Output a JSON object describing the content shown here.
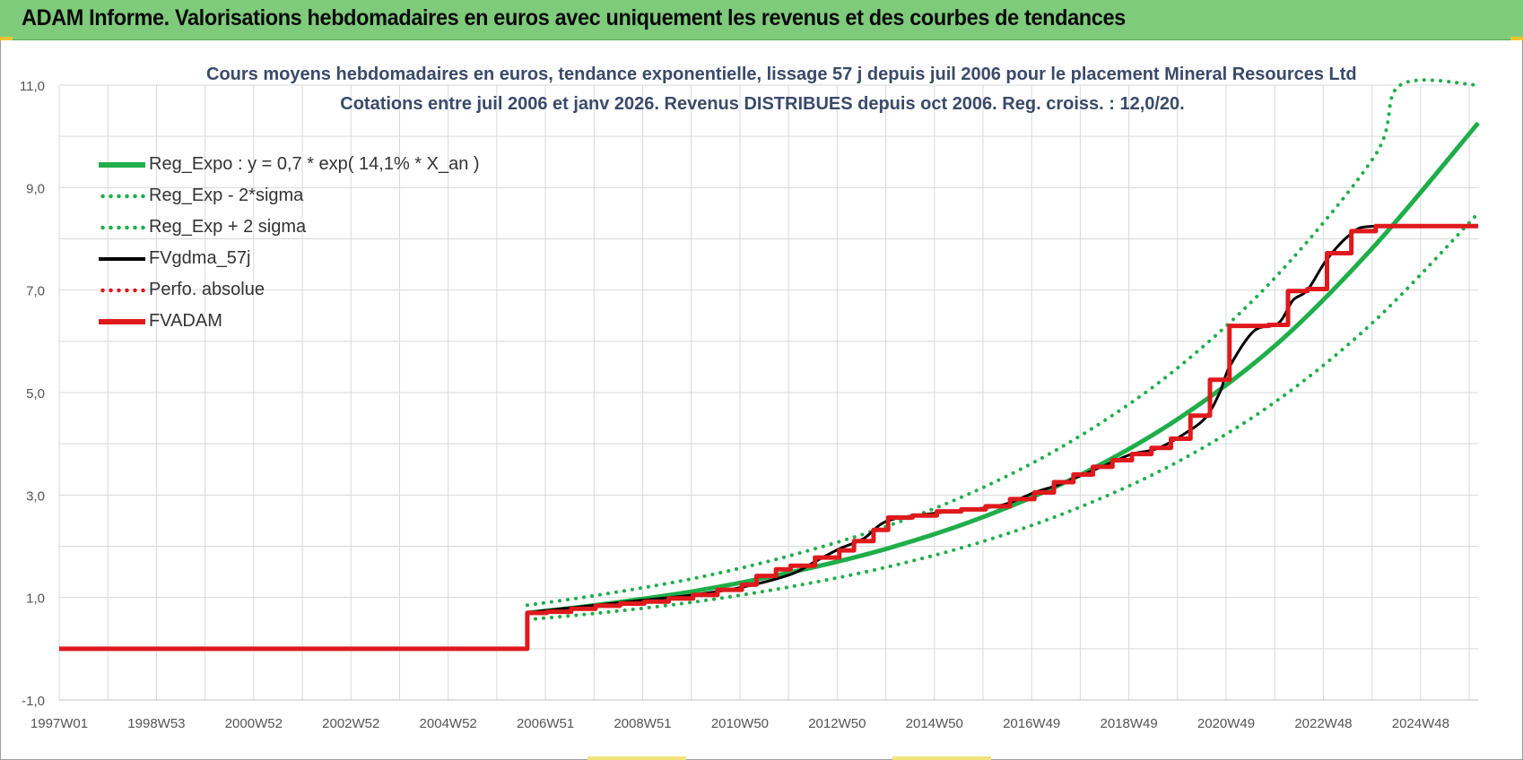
{
  "header": {
    "title": "ADAM Informe. Valorisations hebdomadaires en euros avec uniquement les revenus et des courbes de tendances",
    "background": "#7ecb7b"
  },
  "chart_data": {
    "type": "line",
    "title": "Cours moyens hebdomadaires en euros, tendance exponentielle, lissage 57 j depuis juil 2006 pour le placement Mineral Resources Ltd",
    "subtitle": "Cotations entre juil 2006 et janv 2026. Revenus DISTRIBUES depuis oct 2006. Reg. croiss. : 12,0/20.",
    "xlabel": "",
    "ylabel": "",
    "x_ticks": [
      "1997W01",
      "1998W53",
      "2000W52",
      "2002W52",
      "2004W52",
      "2006W51",
      "2008W51",
      "2010W50",
      "2012W50",
      "2014W50",
      "2016W49",
      "2018W49",
      "2020W49",
      "2022W48",
      "2024W48"
    ],
    "y_ticks": [
      "-1,0",
      "1,0",
      "3,0",
      "5,0",
      "7,0",
      "9,0",
      "11,0"
    ],
    "ylim": [
      -1.0,
      11.0
    ],
    "xlim": [
      1997.0,
      2026.1
    ],
    "grid": "on",
    "legend_position": "top-left",
    "series": [
      {
        "name": "Reg_Expo : y = 0,7 * exp( 14,1% *  X_an )",
        "color": "#1fae4a",
        "style": "solid",
        "x": [
          2006.6,
          2008,
          2010,
          2012,
          2014,
          2016,
          2018,
          2020,
          2022,
          2024,
          2026.1
        ],
        "values": [
          0.7,
          0.85,
          1.12,
          1.49,
          1.96,
          2.59,
          3.42,
          4.52,
          5.97,
          7.89,
          10.26
        ]
      },
      {
        "name": "Reg_Exp - 2*sigma",
        "color": "#1fae4a",
        "style": "dotted",
        "x": [
          2006.6,
          2008,
          2010,
          2012,
          2014,
          2016,
          2018,
          2020,
          2022,
          2024,
          2026.1
        ],
        "values": [
          0.57,
          0.69,
          0.91,
          1.21,
          1.6,
          2.11,
          2.79,
          3.68,
          4.86,
          6.42,
          8.5
        ]
      },
      {
        "name": "Reg_Exp + 2 sigma",
        "color": "#1fae4a",
        "style": "dotted",
        "x": [
          2006.6,
          2008,
          2010,
          2012,
          2014,
          2016,
          2018,
          2020,
          2022,
          2024,
          2024.5,
          2026.1
        ],
        "values": [
          0.85,
          1.04,
          1.37,
          1.82,
          2.4,
          3.17,
          4.19,
          5.53,
          7.31,
          9.65,
          11.0,
          11.0
        ]
      },
      {
        "name": "FVgdma_57j",
        "color": "#000000",
        "style": "solid",
        "x": [
          2006.6,
          2007,
          2008,
          2009,
          2010,
          2011,
          2012,
          2012.5,
          2013,
          2013.5,
          2014,
          2015,
          2016,
          2016.5,
          2017,
          2017.5,
          2018,
          2018.5,
          2019,
          2019.5,
          2020,
          2020.5,
          2020.8,
          2021,
          2021.5,
          2022,
          2022.3,
          2022.6,
          2023,
          2023.5,
          2024,
          2026.1
        ],
        "values": [
          0.7,
          0.75,
          0.85,
          0.95,
          1.05,
          1.2,
          1.45,
          1.7,
          1.95,
          2.15,
          2.5,
          2.65,
          2.75,
          2.85,
          3.05,
          3.2,
          3.4,
          3.6,
          3.8,
          3.9,
          4.15,
          4.5,
          5.0,
          5.5,
          6.2,
          6.35,
          6.8,
          7.0,
          7.6,
          8.1,
          8.25,
          8.25
        ]
      },
      {
        "name": "Perfo. absolue",
        "color": "#e0191c",
        "style": "dotted",
        "x": [],
        "values": []
      },
      {
        "name": "FVADAM",
        "color": "#e0191c",
        "style": "solid",
        "x": [
          1997.0,
          2006.55,
          2006.6,
          2007.0,
          2007.5,
          2008.0,
          2008.5,
          2009.0,
          2009.5,
          2010.0,
          2010.5,
          2011.0,
          2011.3,
          2011.7,
          2012.0,
          2012.5,
          2013.0,
          2013.3,
          2013.7,
          2014.0,
          2014.5,
          2015.0,
          2015.5,
          2016.0,
          2016.5,
          2017.0,
          2017.4,
          2017.8,
          2018.2,
          2018.6,
          2019.0,
          2019.4,
          2019.8,
          2020.2,
          2020.6,
          2021.0,
          2021.4,
          2021.8,
          2022.2,
          2022.6,
          2023.0,
          2023.5,
          2024.0,
          2026.1
        ],
        "values": [
          0.0,
          0.0,
          0.7,
          0.72,
          0.78,
          0.84,
          0.88,
          0.92,
          0.98,
          1.05,
          1.15,
          1.25,
          1.42,
          1.55,
          1.62,
          1.78,
          1.92,
          2.1,
          2.32,
          2.56,
          2.6,
          2.68,
          2.72,
          2.78,
          2.92,
          3.05,
          3.25,
          3.4,
          3.55,
          3.68,
          3.8,
          3.92,
          4.1,
          4.55,
          5.25,
          6.3,
          6.3,
          6.32,
          6.98,
          7.02,
          7.72,
          8.15,
          8.25,
          8.25
        ]
      }
    ]
  }
}
